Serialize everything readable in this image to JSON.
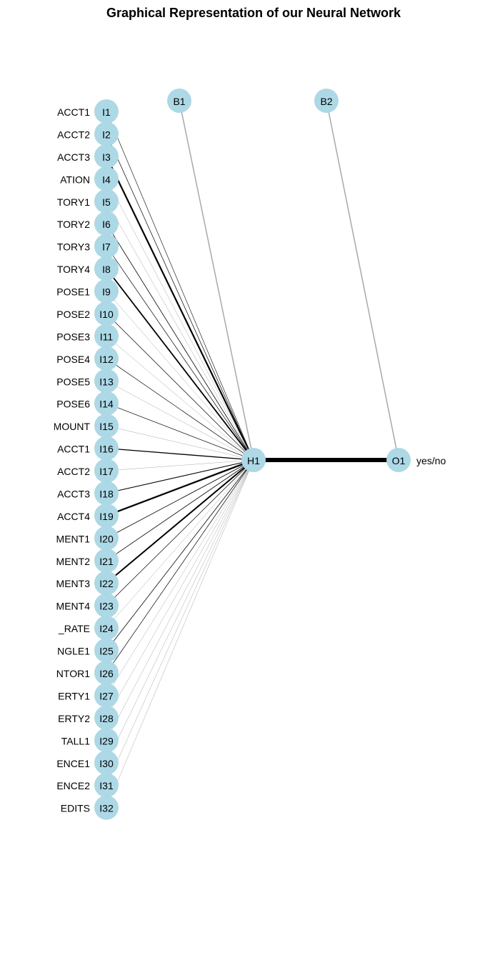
{
  "title": "Graphical Representation of our Neural Network",
  "colors": {
    "node": "#add8e6",
    "positive_edge": "#000000",
    "negative_edge": "#a9a9a9"
  },
  "inputs": [
    {
      "id": "I1",
      "label": "ACCT1",
      "weight": 0.6,
      "sign": "pos"
    },
    {
      "id": "I2",
      "label": "ACCT2",
      "weight": 0.7,
      "sign": "pos"
    },
    {
      "id": "I3",
      "label": "ACCT3",
      "weight": 2.2,
      "sign": "pos"
    },
    {
      "id": "I4",
      "label": "ATION",
      "weight": 0.5,
      "sign": "neg"
    },
    {
      "id": "I5",
      "label": "TORY1",
      "weight": 0.5,
      "sign": "neg"
    },
    {
      "id": "I6",
      "label": "TORY2",
      "weight": 0.8,
      "sign": "pos"
    },
    {
      "id": "I7",
      "label": "TORY3",
      "weight": 0.7,
      "sign": "pos"
    },
    {
      "id": "I8",
      "label": "TORY4",
      "weight": 1.8,
      "sign": "pos"
    },
    {
      "id": "I9",
      "label": "POSE1",
      "weight": 0.5,
      "sign": "neg"
    },
    {
      "id": "I10",
      "label": "POSE2",
      "weight": 0.7,
      "sign": "pos"
    },
    {
      "id": "I11",
      "label": "POSE3",
      "weight": 0.5,
      "sign": "neg"
    },
    {
      "id": "I12",
      "label": "POSE4",
      "weight": 0.7,
      "sign": "pos"
    },
    {
      "id": "I13",
      "label": "POSE5",
      "weight": 0.5,
      "sign": "neg"
    },
    {
      "id": "I14",
      "label": "POSE6",
      "weight": 0.7,
      "sign": "pos"
    },
    {
      "id": "I15",
      "label": "MOUNT",
      "weight": 0.5,
      "sign": "neg"
    },
    {
      "id": "I16",
      "label": "ACCT1",
      "weight": 1.3,
      "sign": "pos"
    },
    {
      "id": "I17",
      "label": "ACCT2",
      "weight": 0.5,
      "sign": "neg"
    },
    {
      "id": "I18",
      "label": "ACCT3",
      "weight": 1.1,
      "sign": "pos"
    },
    {
      "id": "I19",
      "label": "ACCT4",
      "weight": 2.3,
      "sign": "pos"
    },
    {
      "id": "I20",
      "label": "MENT1",
      "weight": 0.8,
      "sign": "pos"
    },
    {
      "id": "I21",
      "label": "MENT2",
      "weight": 0.8,
      "sign": "pos"
    },
    {
      "id": "I22",
      "label": "MENT3",
      "weight": 2.0,
      "sign": "pos"
    },
    {
      "id": "I23",
      "label": "MENT4",
      "weight": 0.7,
      "sign": "pos"
    },
    {
      "id": "I24",
      "label": "_RATE",
      "weight": 0.5,
      "sign": "neg"
    },
    {
      "id": "I25",
      "label": "NGLE1",
      "weight": 0.8,
      "sign": "pos"
    },
    {
      "id": "I26",
      "label": "NTOR1",
      "weight": 0.7,
      "sign": "pos"
    },
    {
      "id": "I27",
      "label": "ERTY1",
      "weight": 0.5,
      "sign": "neg"
    },
    {
      "id": "I28",
      "label": "ERTY2",
      "weight": 0.5,
      "sign": "neg"
    },
    {
      "id": "I29",
      "label": "TALL1",
      "weight": 0.5,
      "sign": "neg"
    },
    {
      "id": "I30",
      "label": "ENCE1",
      "weight": 0.5,
      "sign": "neg"
    },
    {
      "id": "I31",
      "label": "ENCE2",
      "weight": 0.5,
      "sign": "neg"
    },
    {
      "id": "I32",
      "label": "EDITS",
      "weight": 0.5,
      "sign": "neg"
    }
  ],
  "hidden": [
    {
      "id": "H1"
    }
  ],
  "outputs": [
    {
      "id": "O1",
      "label": "yes/no",
      "weight": 6,
      "sign": "pos"
    }
  ],
  "bias": [
    {
      "id": "B1",
      "target": "H1",
      "weight": 1.5,
      "sign": "neg"
    },
    {
      "id": "B2",
      "target": "O1",
      "weight": 1.5,
      "sign": "neg"
    }
  ]
}
